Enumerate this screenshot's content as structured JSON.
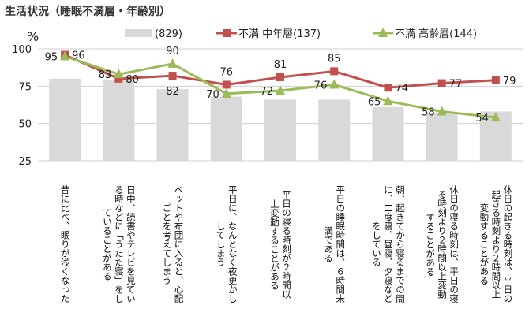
{
  "chart_data": {
    "type": "bar+line",
    "title": "生活状況（睡眠不満層・年齢別）",
    "ylabel": "%",
    "ylim": [
      25,
      100
    ],
    "yticks": [
      25,
      50,
      75,
      100
    ],
    "grid": true,
    "legend_position": "top",
    "categories": [
      [
        "昔に比べ、眠りが浅くなった"
      ],
      [
        "日中、読書やテレビを見てい",
        "る時などに「うたた寝」をし",
        "ていることがある"
      ],
      [
        "ベットや布団に入ると、心配",
        "ごとを考えてしまう"
      ],
      [
        "平日に、なんとなく夜更かし",
        "してしまう"
      ],
      [
        "平日の寝る時刻が２時間以",
        "上変動することがある"
      ],
      [
        "平日の睡眠時間は、６時間未",
        "満である"
      ],
      [
        "朝、起きてから寝るまでの間",
        "に、二度寝、昼寝、夕寝など",
        "をしている"
      ],
      [
        "休日の寝る時刻は、平日の寝",
        "る時刻より２時間以上変動",
        "することがある"
      ],
      [
        "休日の起きる時刻は、平日の",
        "起きる時刻より２時間以上",
        "変動することがある"
      ]
    ],
    "series": [
      {
        "name": "(829)",
        "type": "bar",
        "color": "#d9d9d9",
        "values": [
          80,
          79,
          73,
          68,
          66,
          66,
          61,
          57,
          58
        ]
      },
      {
        "name": "不満 中年層(137)",
        "type": "line",
        "marker": "square",
        "color": "#c0504d",
        "values": [
          96,
          80,
          82,
          76,
          81,
          85,
          74,
          77,
          79
        ]
      },
      {
        "name": "不満 高齢層(144)",
        "type": "line",
        "marker": "triangle",
        "color": "#9bbb59",
        "values": [
          95,
          83,
          90,
          70,
          72,
          76,
          65,
          58,
          54
        ]
      }
    ]
  }
}
